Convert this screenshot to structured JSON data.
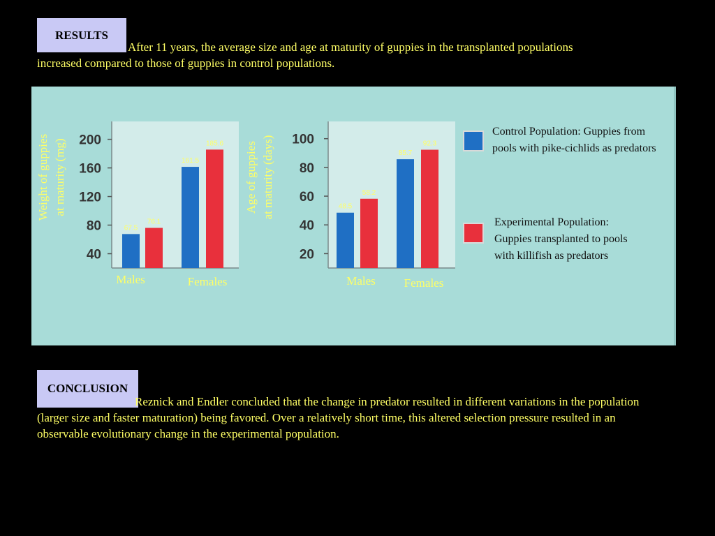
{
  "results": {
    "label": "RESULTS",
    "text": "After 11 years, the average size and age at maturity of guppies in the transplanted populations increased compared to those of guppies in control populations."
  },
  "conclusion": {
    "label": "CONCLUSION",
    "text": "Reznick and Endler concluded that the change in predator resulted in different variations in the population (larger size and faster maturation) being favored. Over a relatively short time, this altered selection pressure resulted in an observable evolutionary change in the experimental population."
  },
  "colors": {
    "background": "#000000",
    "text_yellow": "#ffff66",
    "figure_bg": "#a8dcd8",
    "plot_bg": "#d3ecea",
    "control": "#1f6fc4",
    "experimental": "#e8303c"
  },
  "legend": {
    "control": "Control Population: Guppies from pools with pike-cichlids as predators",
    "experimental": "Experimental Population: Guppies transplanted to pools with killifish as predators"
  },
  "chart_data": [
    {
      "type": "bar",
      "title": "",
      "ylabel": "Weight of guppies at maturity (mg)",
      "xlabel": "",
      "categories": [
        "Males",
        "Females"
      ],
      "yticks": [
        40,
        80,
        120,
        160,
        200
      ],
      "ylim": [
        20,
        225
      ],
      "grid": false,
      "series": [
        {
          "key": "control",
          "values": [
            67.5,
            161.5
          ]
        },
        {
          "key": "experimental",
          "values": [
            76.1,
            185.6
          ]
        }
      ],
      "data_labels": [
        [
          "67.5",
          "76.1"
        ],
        [
          "161.5",
          "185.6"
        ]
      ]
    },
    {
      "type": "bar",
      "title": "",
      "ylabel": "Age of guppies at maturity (days)",
      "xlabel": "",
      "categories": [
        "Males",
        "Females"
      ],
      "yticks": [
        20,
        40,
        60,
        80,
        100
      ],
      "ylim": [
        10,
        112
      ],
      "grid": false,
      "series": [
        {
          "key": "control",
          "values": [
            48.5,
            85.7
          ]
        },
        {
          "key": "experimental",
          "values": [
            58.2,
            92.3
          ]
        }
      ],
      "data_labels": [
        [
          "48.5",
          "58.2"
        ],
        [
          "85.7",
          "92.3"
        ]
      ]
    }
  ]
}
